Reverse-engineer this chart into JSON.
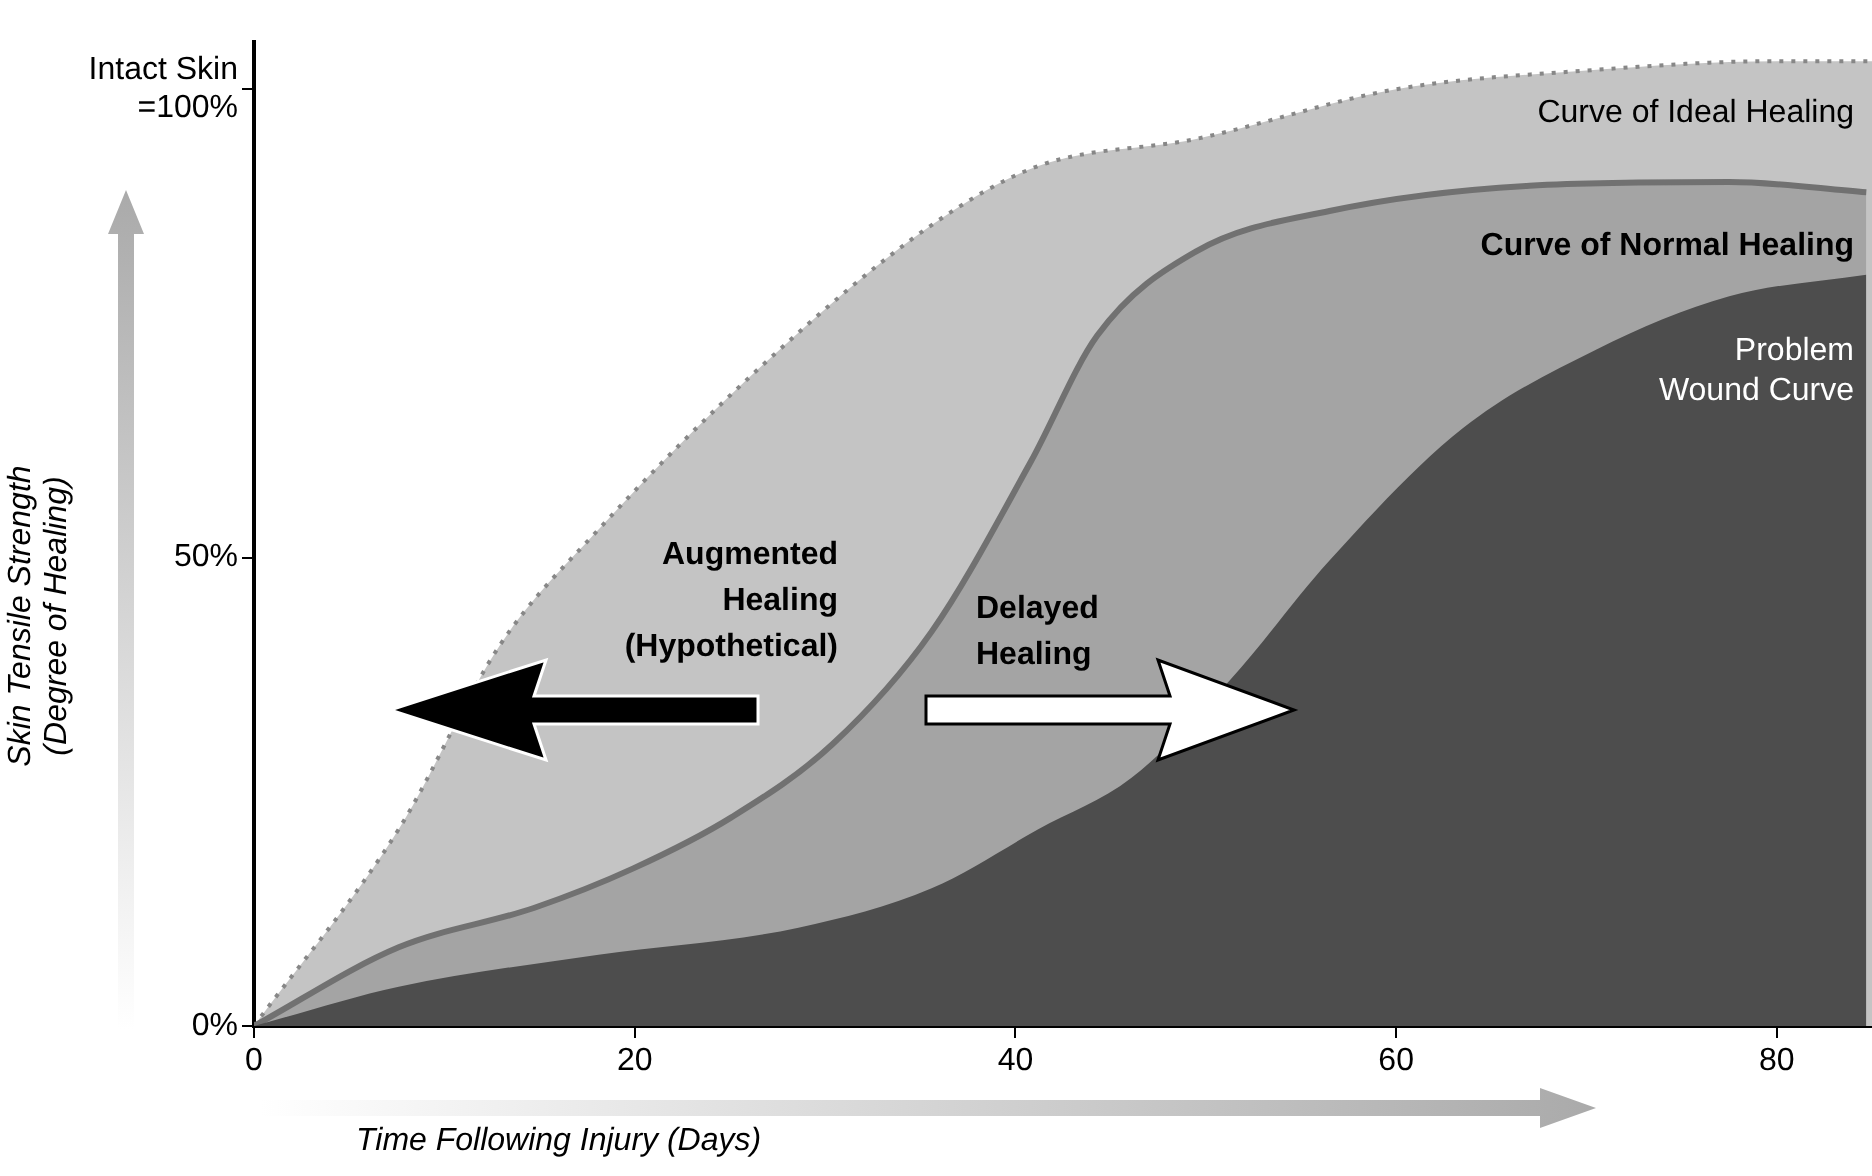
{
  "chart_data": {
    "type": "area",
    "xlabel": "Time Following Injury (Days)",
    "ylabel": "Skin Tensile Strength\n(Degree of Healing)",
    "xlim": [
      0,
      85
    ],
    "xticks": [
      0,
      20,
      40,
      60,
      80
    ],
    "ylim": [
      0,
      105
    ],
    "yticks": [
      {
        "value": 0,
        "label": "0%"
      },
      {
        "value": 50,
        "label": "50%"
      },
      {
        "value": 100,
        "label": "Intact Skin\n=100%"
      }
    ],
    "grid": false,
    "legend": false,
    "marker": "none",
    "series": [
      {
        "name": "Curve of Ideal Healing",
        "color": "#c4c4c4",
        "line_style": "dotted",
        "x": [
          0,
          7.6,
          12.9,
          18.1,
          26.8,
          35.6,
          41.2,
          49.5,
          60,
          70,
          80,
          85
        ],
        "values": [
          0,
          21,
          40.6,
          53,
          70.7,
          85.5,
          91.8,
          94.7,
          100,
          102,
          103,
          103
        ]
      },
      {
        "name": "Curve of Normal Healing",
        "color": "#a4a4a4",
        "line_style": "solid",
        "x": [
          0,
          7.6,
          14.7,
          19.9,
          25.1,
          30.4,
          35.6,
          40.8,
          44.3,
          49.5,
          56.5,
          67,
          77.5,
          84.7
        ],
        "values": [
          0,
          8.4,
          12.6,
          16.8,
          22.3,
          30.1,
          42.1,
          60.2,
          73.7,
          82.7,
          87,
          89.7,
          90.1,
          89
        ]
      },
      {
        "name": "Problem Wound Curve",
        "color": "#4d4d4d",
        "x": [
          0,
          7.6,
          18.1,
          28.6,
          35.6,
          41.2,
          46.1,
          51.3,
          56.5,
          63.5,
          70.5,
          77.5,
          84.7
        ],
        "values": [
          0,
          4.2,
          7.6,
          10.5,
          14.7,
          21,
          26.5,
          37,
          49.7,
          63.8,
          72.2,
          77.9,
          80.2
        ]
      }
    ],
    "annotations": [
      "Augmented\nHealing\n(Hypothetical)",
      "Delayed\nHealing"
    ]
  }
}
